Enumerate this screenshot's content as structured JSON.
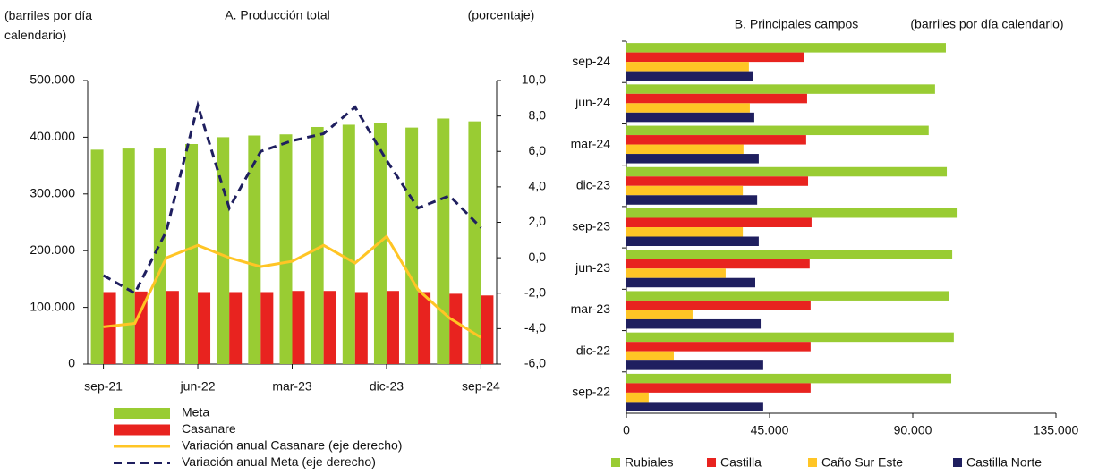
{
  "chart_data": [
    {
      "type": "bar",
      "title": "A. Producción total",
      "y_label": "(barriles por día calendario)",
      "y2_label": "(porcentaje)",
      "categories": [
        "sep-21",
        null,
        null,
        "jun-22",
        null,
        null,
        "mar-23",
        null,
        null,
        "dic-23",
        null,
        null,
        "sep-24"
      ],
      "series": [
        {
          "name": "Meta",
          "type": "bar",
          "color": "#99cc33",
          "values": [
            378000,
            380000,
            380000,
            388000,
            400000,
            403000,
            405000,
            418000,
            422000,
            425000,
            417000,
            433000,
            428000
          ]
        },
        {
          "name": "Casanare",
          "type": "bar",
          "color": "#e8231f",
          "values": [
            127000,
            128000,
            129000,
            127000,
            127000,
            127000,
            129000,
            129000,
            127000,
            129000,
            127000,
            124000,
            121000
          ]
        },
        {
          "name": "Variación anual Casanare (eje derecho)",
          "type": "line",
          "axis": "y2",
          "color": "#ffc525",
          "dashed": false,
          "values": [
            -3.9,
            -3.7,
            0.0,
            0.7,
            0.0,
            -0.5,
            -0.2,
            0.7,
            -0.3,
            1.2,
            -1.8,
            -3.4,
            -4.5
          ]
        },
        {
          "name": "Variación anual Meta (eje derecho)",
          "type": "line",
          "axis": "y2",
          "color": "#1f1f5f",
          "dashed": true,
          "values": [
            -1.0,
            -2.0,
            1.5,
            8.6,
            2.8,
            6.0,
            6.6,
            7.0,
            8.5,
            5.5,
            2.8,
            3.5,
            1.7
          ]
        }
      ],
      "ylim": [
        0,
        500000
      ],
      "yticks": [
        0,
        {
          "value": 100000,
          "label": "100.000"
        },
        {
          "value": 200000,
          "label": "200.000"
        },
        {
          "value": 300000,
          "label": "300.000"
        },
        {
          "value": 400000,
          "label": "400.000"
        },
        {
          "value": 500000,
          "label": "500.000"
        }
      ],
      "y2lim": [
        -6,
        10
      ],
      "y2ticks": [
        {
          "value": -6,
          "label": "-6,0"
        },
        {
          "value": -4,
          "label": "-4,0"
        },
        {
          "value": -2,
          "label": "-2,0"
        },
        {
          "value": 0,
          "label": "0,0"
        },
        {
          "value": 2,
          "label": "2,0"
        },
        {
          "value": 4,
          "label": "4,0"
        },
        {
          "value": 6,
          "label": "6,0"
        },
        {
          "value": 8,
          "label": "8,0"
        },
        {
          "value": 10,
          "label": "10,0"
        }
      ],
      "legend": "bottom"
    },
    {
      "type": "bar",
      "orientation": "horizontal",
      "title": "B. Principales campos",
      "x_label": "(barriles por día calendario)",
      "categories": [
        "sep-22",
        "dic-22",
        "mar-23",
        "jun-23",
        "sep-23",
        "dic-23",
        "mar-24",
        "jun-24",
        "sep-24"
      ],
      "series": [
        {
          "name": "Rubiales",
          "color": "#99cc33",
          "values": [
            102100,
            102900,
            101500,
            102400,
            103800,
            100700,
            95000,
            97000,
            100400
          ]
        },
        {
          "name": "Castilla",
          "color": "#e8231f",
          "values": [
            57900,
            57900,
            57900,
            57600,
            58200,
            57100,
            56500,
            56800,
            55700
          ]
        },
        {
          "name": "Caño Sur Este",
          "color": "#ffc525",
          "values": [
            7000,
            14900,
            20800,
            31200,
            36600,
            36600,
            36800,
            38800,
            38500
          ]
        },
        {
          "name": "Castilla Norte",
          "color": "#1f1f5f",
          "values": [
            43000,
            43000,
            42200,
            40500,
            41600,
            41100,
            41600,
            40200,
            39900
          ]
        }
      ],
      "xlim": [
        0,
        135000
      ],
      "xticks": [
        0,
        {
          "value": 45000,
          "label": "45.000"
        },
        {
          "value": 90000,
          "label": "90.000"
        },
        {
          "value": 135000,
          "label": "135.000"
        }
      ],
      "legend": "bottom"
    }
  ]
}
